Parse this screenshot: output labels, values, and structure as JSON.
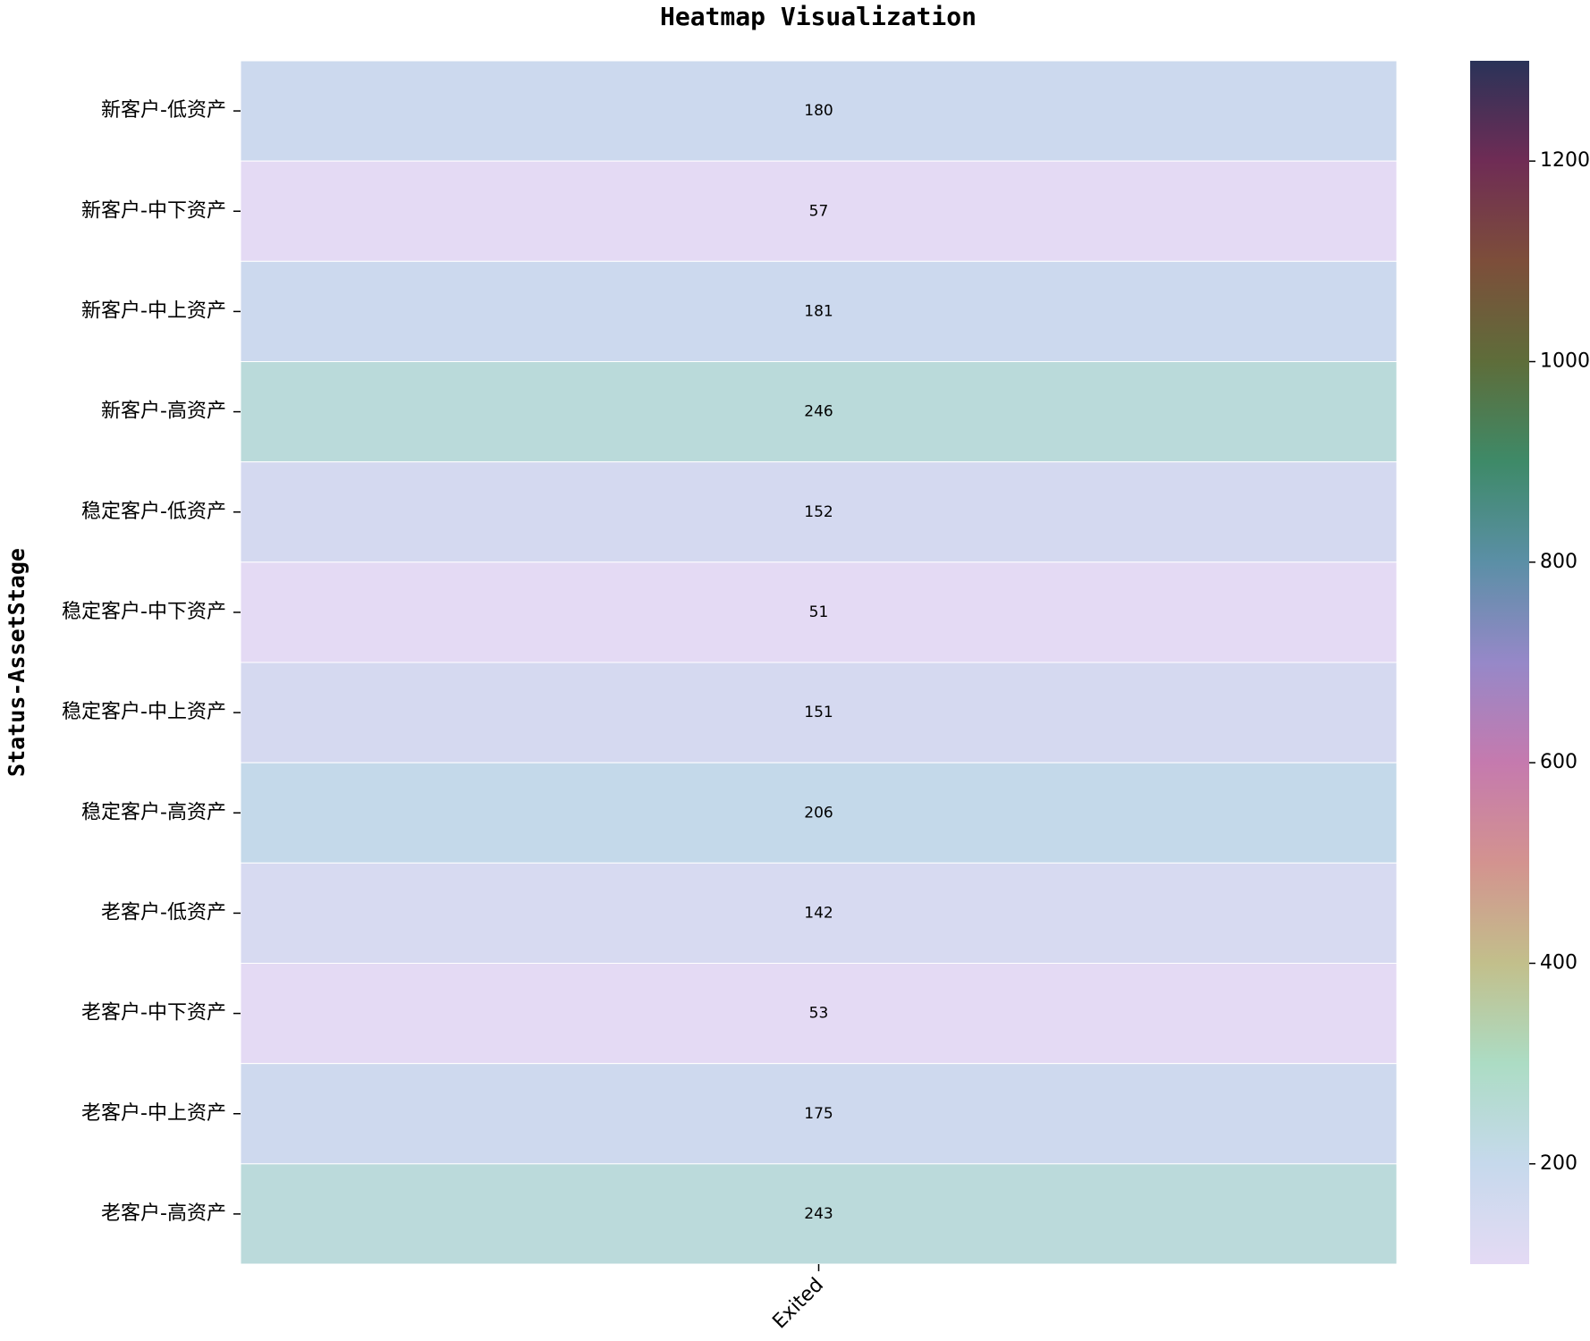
{
  "chart_data": {
    "type": "heatmap",
    "title": "Heatmap Visualization",
    "ylabel": "Status-AssetStage",
    "x_categories": [
      "Exited"
    ],
    "y_categories": [
      "新客户-低资产",
      "新客户-中下资产",
      "新客户-中上资产",
      "新客户-高资产",
      "稳定客户-低资产",
      "稳定客户-中下资产",
      "稳定客户-中上资产",
      "稳定客户-高资产",
      "老客户-低资产",
      "老客户-中下资产",
      "老客户-中上资产",
      "老客户-高资产"
    ],
    "values": [
      [
        180
      ],
      [
        57
      ],
      [
        181
      ],
      [
        246
      ],
      [
        152
      ],
      [
        51
      ],
      [
        151
      ],
      [
        206
      ],
      [
        142
      ],
      [
        53
      ],
      [
        175
      ],
      [
        243
      ]
    ],
    "colormap": [
      "#e4daf4",
      "#c6d9ec",
      "#acdcc4",
      "#c2bf8b",
      "#d3938f",
      "#c57aae",
      "#9688c8",
      "#5b8fa6",
      "#3e8a68",
      "#5e6d3a",
      "#7d4e3a",
      "#6f2c55",
      "#2a3358"
    ],
    "clim": [
      100,
      1300
    ],
    "cticks": [
      200,
      400,
      600,
      800,
      1000,
      1200
    ]
  }
}
